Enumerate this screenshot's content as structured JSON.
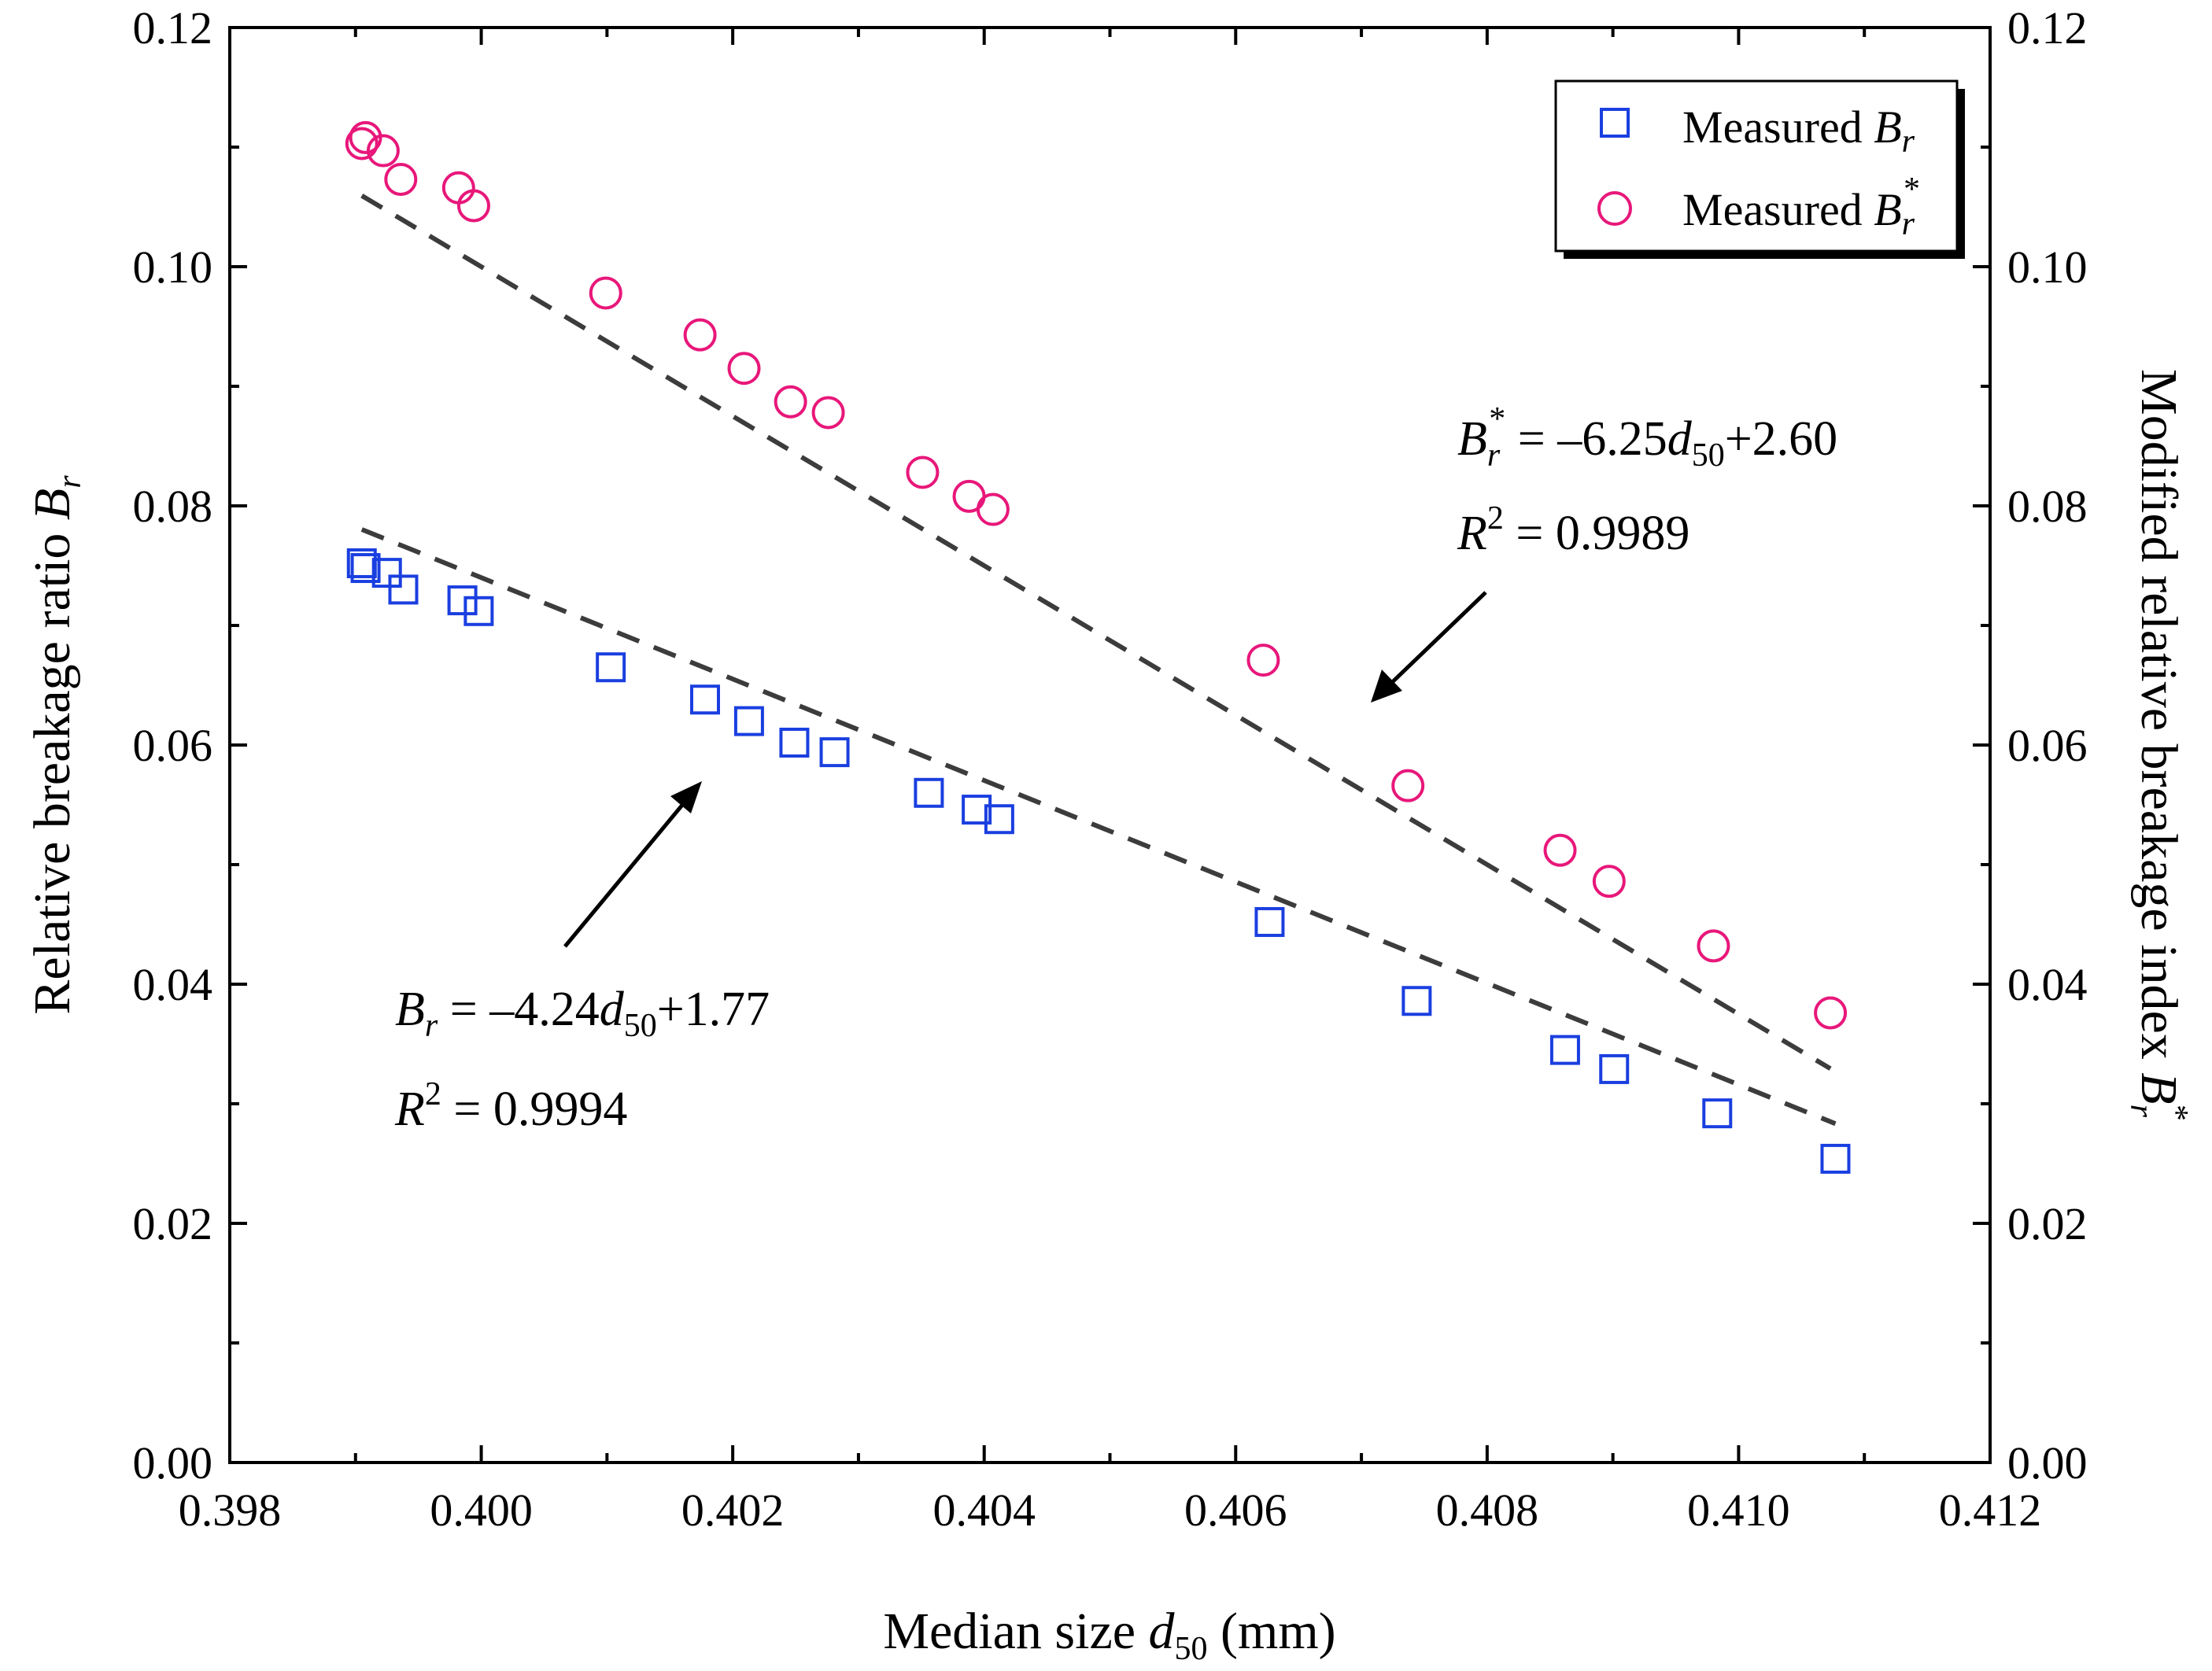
{
  "chart_data": {
    "type": "scatter",
    "title": "",
    "xlabel": {
      "main": "Median size ",
      "var": "d",
      "sub": "50",
      "unit": " (mm)"
    },
    "ylabel_left": {
      "main": "Relative breakage ratio ",
      "var": "B",
      "sub": "r"
    },
    "ylabel_right": {
      "main": "Modified relative breakage index ",
      "var": "B",
      "sub": "r",
      "sup": "*"
    },
    "xlim": [
      0.398,
      0.412
    ],
    "ylim": [
      0.0,
      0.12
    ],
    "x_ticks": [
      0.398,
      0.4,
      0.402,
      0.404,
      0.406,
      0.408,
      0.41,
      0.412
    ],
    "x_tick_labels": [
      "0.398",
      "0.400",
      "0.402",
      "0.404",
      "0.406",
      "0.408",
      "0.410",
      "0.412"
    ],
    "y_ticks": [
      0.0,
      0.02,
      0.04,
      0.06,
      0.08,
      0.1,
      0.12
    ],
    "y_tick_labels_left": [
      "0.00",
      "0.02",
      "0.04",
      "0.06",
      "0.08",
      "0.10",
      "0.12"
    ],
    "y_tick_labels_right": [
      "0.00",
      "0.02",
      "0.04",
      "0.06",
      "0.08",
      "0.10",
      "0.12"
    ],
    "grid": false,
    "legend_position": "top-right",
    "series": [
      {
        "name": "Measured Br",
        "legend_label": {
          "main": "Measured ",
          "var": "B",
          "sub": "r"
        },
        "marker": "square",
        "color": "#1a3fe0",
        "x": [
          0.39905,
          0.39908,
          0.39925,
          0.39938,
          0.39985,
          0.39998,
          0.40103,
          0.40178,
          0.40213,
          0.40249,
          0.40281,
          0.40356,
          0.40394,
          0.40412,
          0.40627,
          0.40744,
          0.40862,
          0.40901,
          0.40983,
          0.41077
        ],
        "y": [
          0.0752,
          0.0748,
          0.0744,
          0.073,
          0.0721,
          0.0712,
          0.0665,
          0.0638,
          0.062,
          0.0602,
          0.0594,
          0.056,
          0.0546,
          0.0538,
          0.0452,
          0.0386,
          0.0345,
          0.0329,
          0.0292,
          0.0254
        ],
        "fit": {
          "slope": -4.24,
          "intercept": 1.77,
          "x_range": [
            0.39905,
            0.41077
          ]
        },
        "annotation": {
          "lhs_var": "B",
          "lhs_sub": "r",
          "rhs": " = –4.24",
          "rhs_var": "d",
          "rhs_sub": "50",
          "rhs_tail": "+1.77",
          "r2_var": "R",
          "r2_sup": "2",
          "r2_value": " = 0.9994"
        }
      },
      {
        "name": "Measured Br*",
        "legend_label": {
          "main": "Measured ",
          "var": "B",
          "sub": "r",
          "sup": "*"
        },
        "marker": "circle",
        "color": "#e8177a",
        "x": [
          0.39905,
          0.39908,
          0.39922,
          0.39936,
          0.39982,
          0.39994,
          0.40099,
          0.40174,
          0.40209,
          0.40246,
          0.40276,
          0.40351,
          0.40388,
          0.40407,
          0.40622,
          0.40737,
          0.40858,
          0.40897,
          0.4098,
          0.41073
        ],
        "y": [
          0.1103,
          0.1108,
          0.1097,
          0.1073,
          0.1066,
          0.1051,
          0.0978,
          0.0943,
          0.0915,
          0.0887,
          0.0878,
          0.0828,
          0.0808,
          0.0797,
          0.0671,
          0.0566,
          0.0512,
          0.0486,
          0.0432,
          0.0376
        ],
        "fit": {
          "slope": -6.25,
          "intercept": 2.6,
          "x_range": [
            0.39905,
            0.41073
          ]
        },
        "annotation": {
          "lhs_var": "B",
          "lhs_sub": "r",
          "lhs_sup": "*",
          "rhs": " = –6.25",
          "rhs_var": "d",
          "rhs_sub": "50",
          "rhs_tail": "+2.60",
          "r2_var": "R",
          "r2_sup": "2",
          "r2_value": " = 0.9989"
        }
      }
    ]
  }
}
